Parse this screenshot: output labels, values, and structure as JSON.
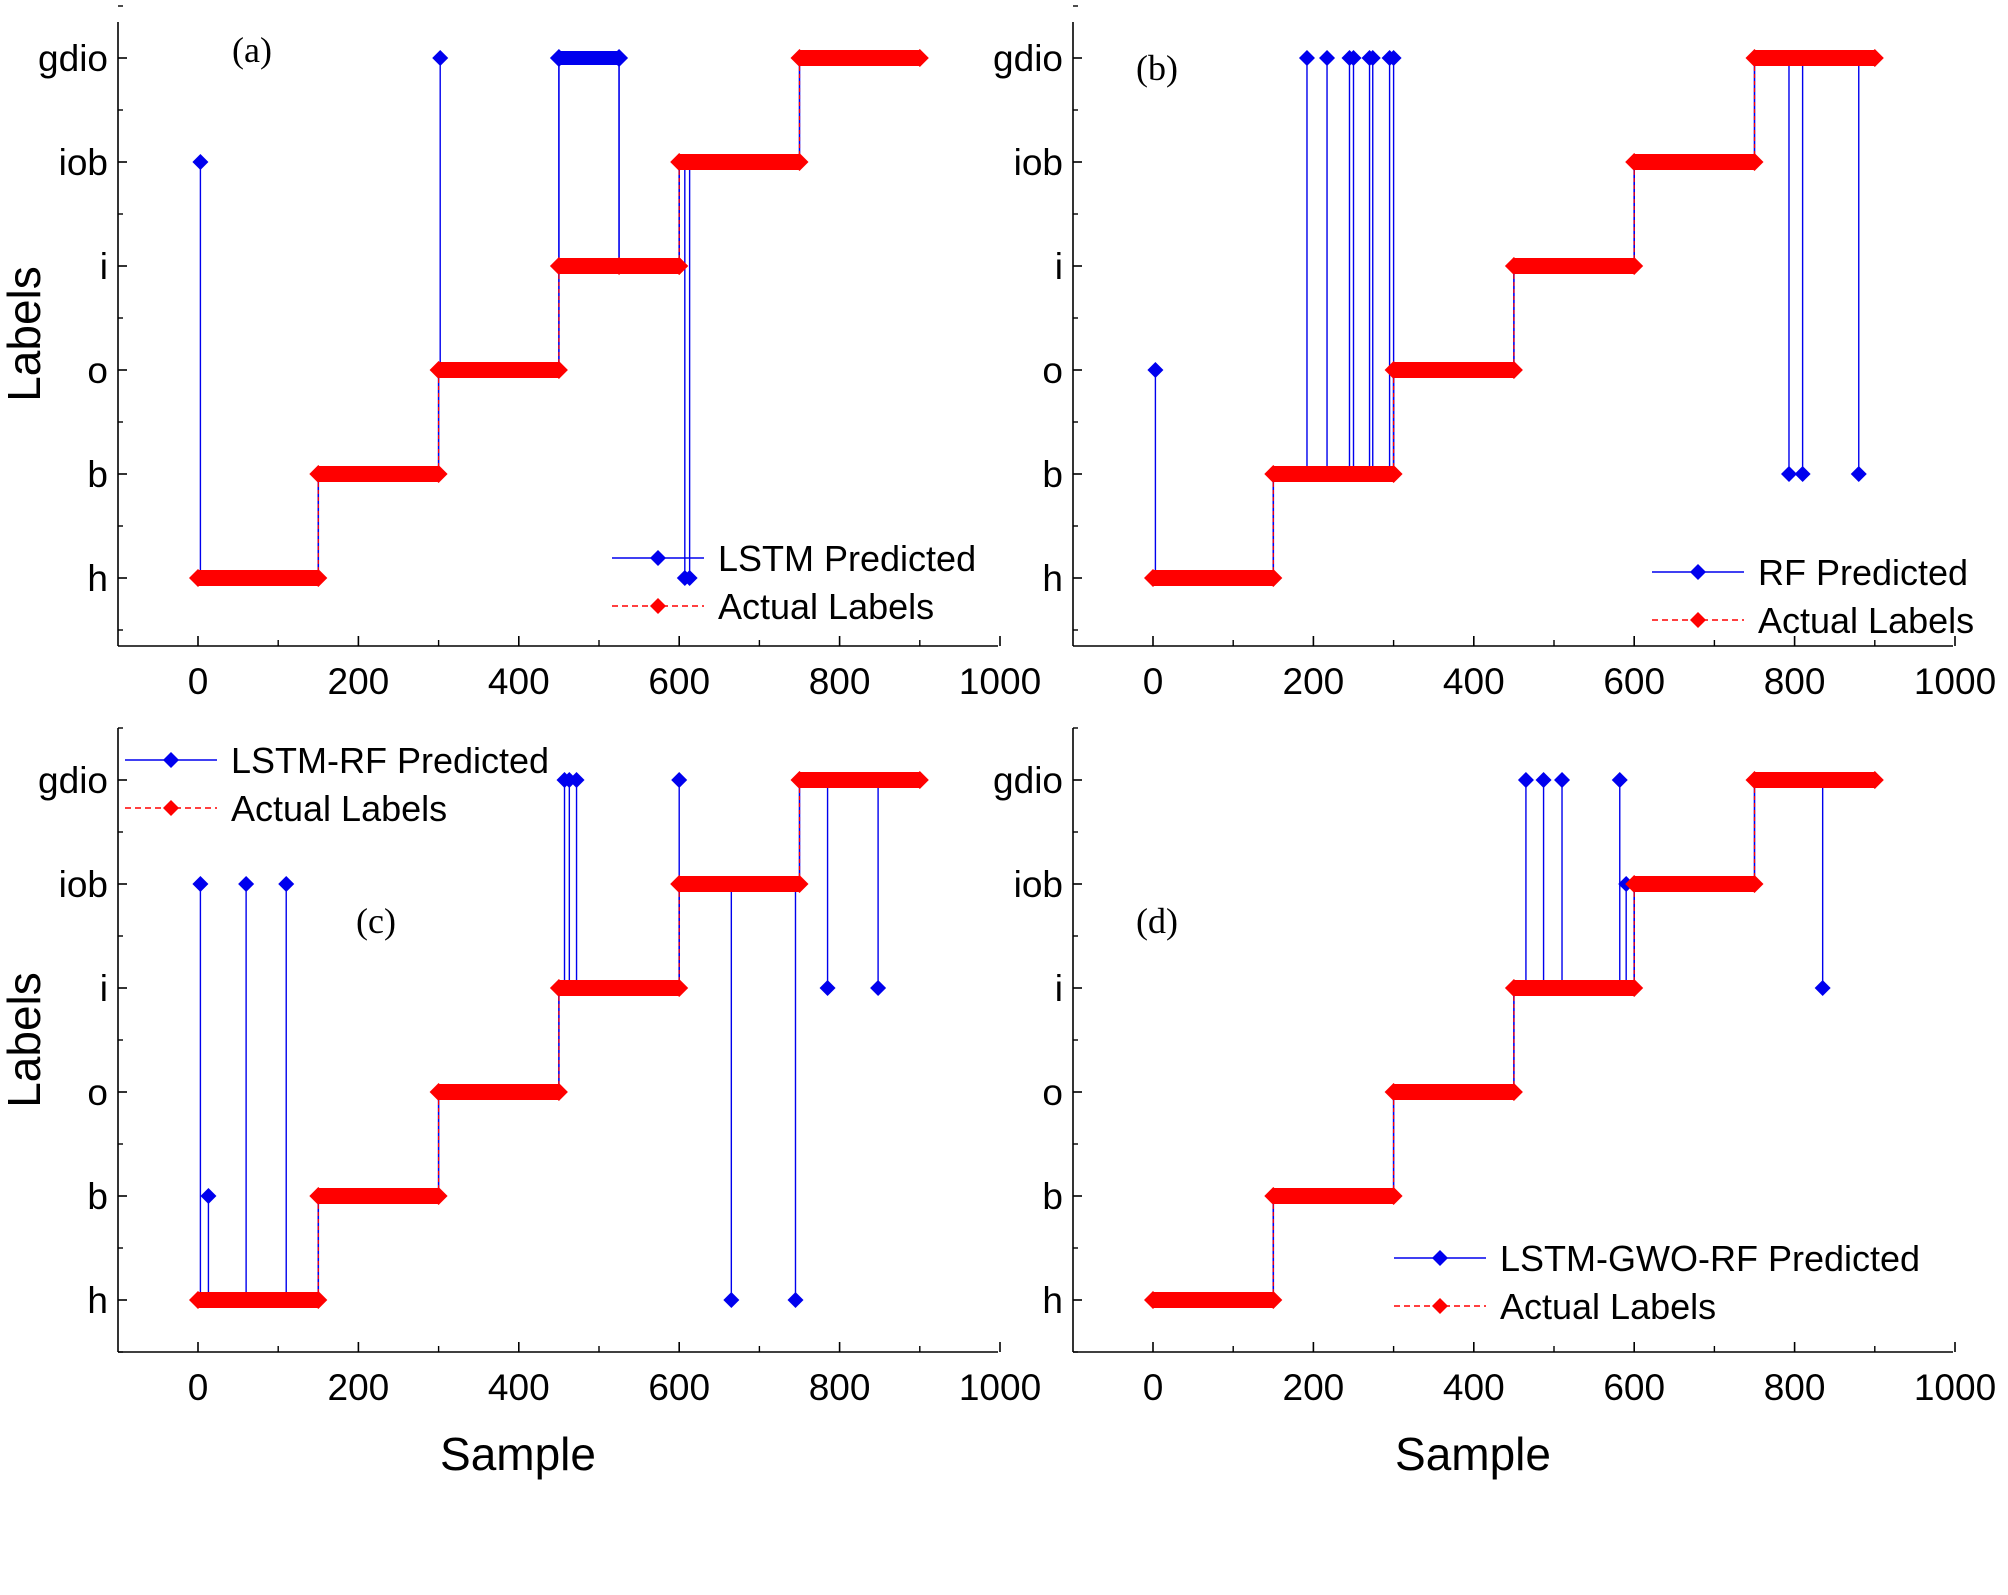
{
  "figure": {
    "y_axis_title": "Labels",
    "x_axis_title": "Sample"
  },
  "colors": {
    "predicted": "#0000ee",
    "actual": "#ff0000",
    "axis": "#000000"
  },
  "chart_data": [
    {
      "type": "line",
      "panel_label": "(a)",
      "xlabel": "",
      "ylabel": "Labels",
      "xlim": [
        -100,
        1000
      ],
      "xticks": [
        "0",
        "200",
        "400",
        "600",
        "800",
        "1000"
      ],
      "ycategories": [
        "h",
        "b",
        "o",
        "i",
        "iob",
        "gdio"
      ],
      "legend_position": "bottom-right",
      "series": [
        {
          "name": "LSTM Predicted",
          "segments": [
            {
              "x": [
                0,
                150
              ],
              "y": "h"
            },
            {
              "x": [
                150,
                300
              ],
              "y": "b"
            },
            {
              "x": [
                300,
                450
              ],
              "y": "o"
            },
            {
              "x": [
                450,
                525
              ],
              "y": "gdio"
            },
            {
              "x": [
                525,
                600
              ],
              "y": "i"
            },
            {
              "x": [
                600,
                750
              ],
              "y": "iob"
            },
            {
              "x": [
                750,
                900
              ],
              "y": "gdio"
            }
          ],
          "outliers": [
            {
              "x": 3,
              "y": "iob"
            },
            {
              "x": 302,
              "y": "gdio"
            },
            {
              "x": 607,
              "y": "h"
            },
            {
              "x": 613,
              "y": "h"
            }
          ]
        },
        {
          "name": "Actual Labels",
          "segments": [
            {
              "x": [
                0,
                150
              ],
              "y": "h"
            },
            {
              "x": [
                150,
                300
              ],
              "y": "b"
            },
            {
              "x": [
                300,
                450
              ],
              "y": "o"
            },
            {
              "x": [
                450,
                600
              ],
              "y": "i"
            },
            {
              "x": [
                600,
                750
              ],
              "y": "iob"
            },
            {
              "x": [
                750,
                900
              ],
              "y": "gdio"
            }
          ]
        }
      ]
    },
    {
      "type": "line",
      "panel_label": "(b)",
      "xlabel": "",
      "ylabel": "",
      "xlim": [
        -100,
        1000
      ],
      "xticks": [
        "0",
        "200",
        "400",
        "600",
        "800",
        "1000"
      ],
      "ycategories": [
        "h",
        "b",
        "o",
        "i",
        "iob",
        "gdio"
      ],
      "legend_position": "bottom-right",
      "series": [
        {
          "name": "RF Predicted",
          "segments": [
            {
              "x": [
                0,
                150
              ],
              "y": "h"
            },
            {
              "x": [
                150,
                300
              ],
              "y": "b"
            },
            {
              "x": [
                300,
                450
              ],
              "y": "o"
            },
            {
              "x": [
                450,
                600
              ],
              "y": "i"
            },
            {
              "x": [
                600,
                750
              ],
              "y": "iob"
            },
            {
              "x": [
                750,
                900
              ],
              "y": "gdio"
            }
          ],
          "outliers": [
            {
              "x": 3,
              "y": "o"
            },
            {
              "x": 192,
              "y": "gdio"
            },
            {
              "x": 217,
              "y": "gdio"
            },
            {
              "x": 245,
              "y": "gdio"
            },
            {
              "x": 250,
              "y": "gdio"
            },
            {
              "x": 270,
              "y": "gdio"
            },
            {
              "x": 274,
              "y": "gdio"
            },
            {
              "x": 295,
              "y": "gdio"
            },
            {
              "x": 300,
              "y": "gdio"
            },
            {
              "x": 793,
              "y": "b"
            },
            {
              "x": 810,
              "y": "b"
            },
            {
              "x": 880,
              "y": "b"
            }
          ]
        },
        {
          "name": "Actual Labels",
          "segments": [
            {
              "x": [
                0,
                150
              ],
              "y": "h"
            },
            {
              "x": [
                150,
                300
              ],
              "y": "b"
            },
            {
              "x": [
                300,
                450
              ],
              "y": "o"
            },
            {
              "x": [
                450,
                600
              ],
              "y": "i"
            },
            {
              "x": [
                600,
                750
              ],
              "y": "iob"
            },
            {
              "x": [
                750,
                900
              ],
              "y": "gdio"
            }
          ]
        }
      ]
    },
    {
      "type": "line",
      "panel_label": "(c)",
      "xlabel": "Sample",
      "ylabel": "Labels",
      "xlim": [
        -100,
        1000
      ],
      "xticks": [
        "0",
        "200",
        "400",
        "600",
        "800",
        "1000"
      ],
      "ycategories": [
        "h",
        "b",
        "o",
        "i",
        "iob",
        "gdio"
      ],
      "legend_position": "top-left",
      "series": [
        {
          "name": "LSTM-RF Predicted",
          "segments": [
            {
              "x": [
                0,
                150
              ],
              "y": "h"
            },
            {
              "x": [
                150,
                300
              ],
              "y": "b"
            },
            {
              "x": [
                300,
                450
              ],
              "y": "o"
            },
            {
              "x": [
                450,
                600
              ],
              "y": "i"
            },
            {
              "x": [
                600,
                750
              ],
              "y": "iob"
            },
            {
              "x": [
                750,
                900
              ],
              "y": "gdio"
            }
          ],
          "outliers": [
            {
              "x": 3,
              "y": "iob"
            },
            {
              "x": 13,
              "y": "b"
            },
            {
              "x": 60,
              "y": "iob"
            },
            {
              "x": 110,
              "y": "iob"
            },
            {
              "x": 457,
              "y": "gdio"
            },
            {
              "x": 463,
              "y": "gdio"
            },
            {
              "x": 472,
              "y": "gdio"
            },
            {
              "x": 600,
              "y": "gdio"
            },
            {
              "x": 665,
              "y": "h"
            },
            {
              "x": 745,
              "y": "h"
            },
            {
              "x": 785,
              "y": "i"
            },
            {
              "x": 848,
              "y": "i"
            }
          ]
        },
        {
          "name": "Actual Labels",
          "segments": [
            {
              "x": [
                0,
                150
              ],
              "y": "h"
            },
            {
              "x": [
                150,
                300
              ],
              "y": "b"
            },
            {
              "x": [
                300,
                450
              ],
              "y": "o"
            },
            {
              "x": [
                450,
                600
              ],
              "y": "i"
            },
            {
              "x": [
                600,
                750
              ],
              "y": "iob"
            },
            {
              "x": [
                750,
                900
              ],
              "y": "gdio"
            }
          ]
        }
      ]
    },
    {
      "type": "line",
      "panel_label": "(d)",
      "xlabel": "Sample",
      "ylabel": "",
      "xlim": [
        -100,
        1000
      ],
      "xticks": [
        "0",
        "200",
        "400",
        "600",
        "800",
        "1000"
      ],
      "ycategories": [
        "h",
        "b",
        "o",
        "i",
        "iob",
        "gdio"
      ],
      "legend_position": "bottom-right",
      "series": [
        {
          "name": "LSTM-GWO-RF Predicted",
          "segments": [
            {
              "x": [
                0,
                150
              ],
              "y": "h"
            },
            {
              "x": [
                150,
                300
              ],
              "y": "b"
            },
            {
              "x": [
                300,
                450
              ],
              "y": "o"
            },
            {
              "x": [
                450,
                600
              ],
              "y": "i"
            },
            {
              "x": [
                600,
                750
              ],
              "y": "iob"
            },
            {
              "x": [
                750,
                900
              ],
              "y": "gdio"
            }
          ],
          "outliers": [
            {
              "x": 465,
              "y": "gdio"
            },
            {
              "x": 487,
              "y": "gdio"
            },
            {
              "x": 510,
              "y": "gdio"
            },
            {
              "x": 582,
              "y": "gdio"
            },
            {
              "x": 590,
              "y": "iob"
            },
            {
              "x": 835,
              "y": "i"
            }
          ]
        },
        {
          "name": "Actual Labels",
          "segments": [
            {
              "x": [
                0,
                150
              ],
              "y": "h"
            },
            {
              "x": [
                150,
                300
              ],
              "y": "b"
            },
            {
              "x": [
                300,
                450
              ],
              "y": "o"
            },
            {
              "x": [
                450,
                600
              ],
              "y": "i"
            },
            {
              "x": [
                600,
                750
              ],
              "y": "iob"
            },
            {
              "x": [
                750,
                900
              ],
              "y": "gdio"
            }
          ]
        }
      ]
    }
  ]
}
